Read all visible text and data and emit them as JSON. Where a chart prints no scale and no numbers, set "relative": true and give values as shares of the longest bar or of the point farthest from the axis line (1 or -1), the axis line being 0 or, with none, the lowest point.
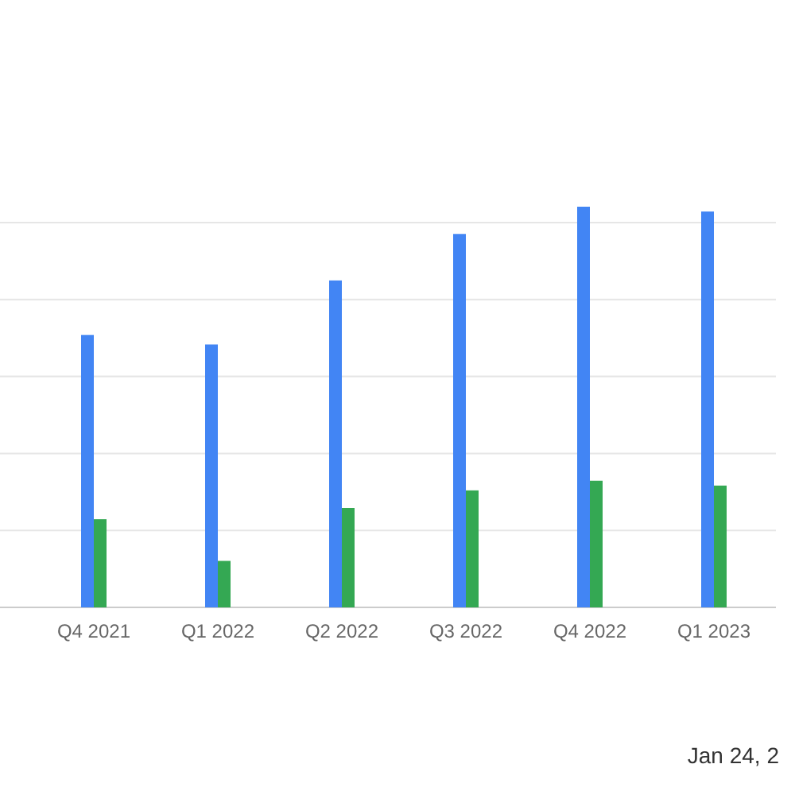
{
  "chart_data": {
    "type": "bar",
    "relative": true,
    "grid": true,
    "categories": [
      "Q4 2021",
      "Q1 2022",
      "Q2 2022",
      "Q3 2022",
      "Q4 2022",
      "Q1 2023"
    ],
    "series": [
      {
        "color": "#4285f4",
        "values": [
          0.68,
          0.656,
          0.816,
          0.932,
          1,
          0.988
        ]
      },
      {
        "color": "#34a853",
        "values": [
          0.22,
          0.116,
          0.248,
          0.292,
          0.316,
          0.304
        ]
      }
    ],
    "annotations": [
      "Jan 24, 2"
    ]
  }
}
